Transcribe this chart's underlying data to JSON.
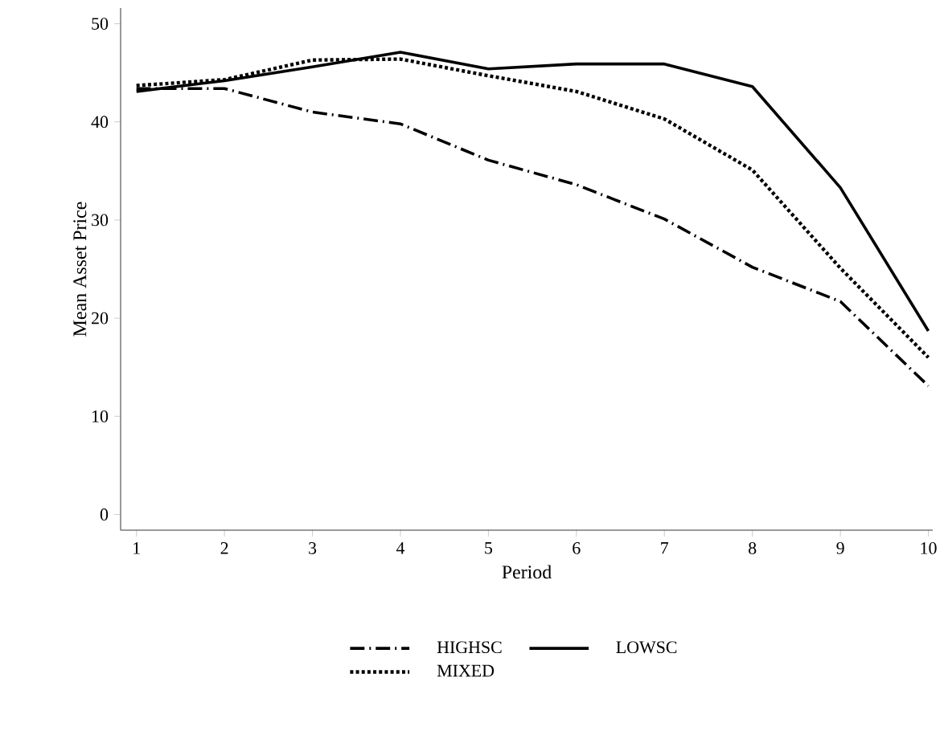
{
  "chart_data": {
    "type": "line",
    "xlabel": "Period",
    "ylabel": "Mean Asset Price",
    "x": [
      1,
      2,
      3,
      4,
      5,
      6,
      7,
      8,
      9,
      10
    ],
    "series": [
      {
        "name": "HIGHSC",
        "color": "#000000",
        "line_style": "dashdot",
        "values": [
          43.4,
          43.4,
          41.0,
          39.8,
          36.1,
          33.6,
          30.1,
          25.2,
          21.7,
          13.1
        ]
      },
      {
        "name": "LOWSC",
        "color": "#000000",
        "line_style": "solid",
        "values": [
          43.1,
          44.2,
          45.6,
          47.1,
          45.4,
          45.9,
          45.9,
          43.6,
          33.3,
          18.7
        ]
      },
      {
        "name": "MIXED",
        "color": "#000000",
        "line_style": "dotted",
        "values": [
          43.7,
          44.3,
          46.3,
          46.4,
          44.7,
          43.1,
          40.3,
          35.1,
          25.1,
          16.0
        ]
      }
    ],
    "xlim": [
      0.82,
      10.05
    ],
    "ylim": [
      -1.6,
      51.6
    ],
    "xticks": [
      1,
      2,
      3,
      4,
      5,
      6,
      7,
      8,
      9,
      10
    ],
    "yticks": [
      0,
      10,
      20,
      30,
      40,
      50
    ],
    "grid": false,
    "legend": "bottom",
    "marker": "none"
  }
}
